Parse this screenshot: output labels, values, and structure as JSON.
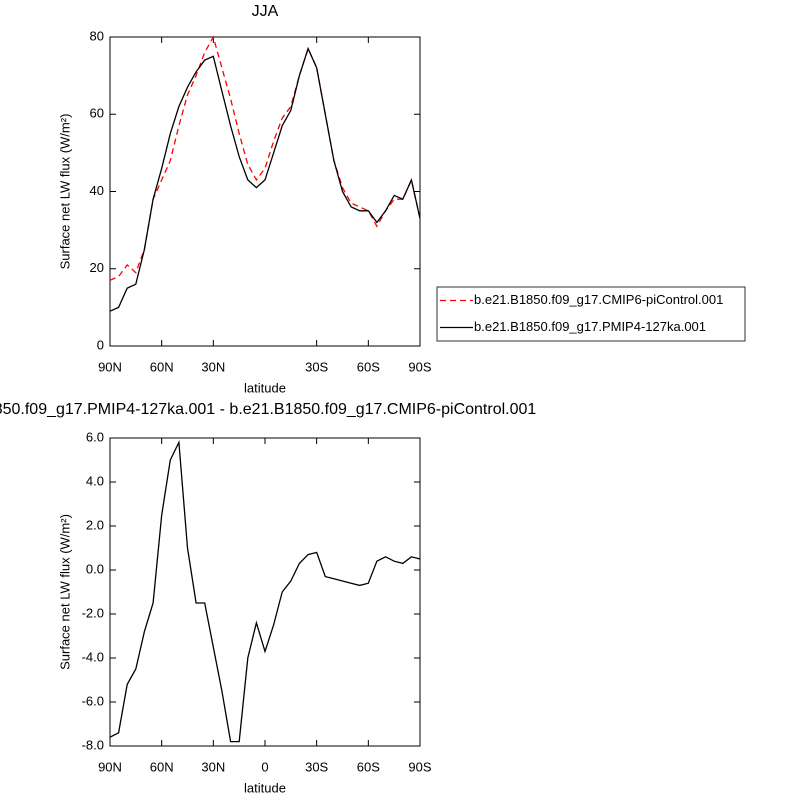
{
  "chart_data": [
    {
      "type": "line",
      "title": "JJA",
      "xlabel": "latitude",
      "ylabel": "Surface net LW flux (W/m²)",
      "x": [
        90,
        85,
        80,
        75,
        70,
        65,
        60,
        55,
        50,
        45,
        40,
        35,
        30,
        25,
        20,
        15,
        10,
        5,
        0,
        -5,
        -10,
        -15,
        -20,
        -25,
        -30,
        -35,
        -40,
        -45,
        -50,
        -55,
        -60,
        -65,
        -70,
        -75,
        -80,
        -85,
        -90
      ],
      "xlim": [
        90,
        -90
      ],
      "xticks": [
        {
          "value": 90,
          "label": "90N"
        },
        {
          "value": 60,
          "label": "60N"
        },
        {
          "value": 30,
          "label": "30N"
        },
        {
          "value": -30,
          "label": "30S"
        },
        {
          "value": -60,
          "label": "60S"
        },
        {
          "value": -90,
          "label": "90S"
        }
      ],
      "ylim": [
        0,
        80
      ],
      "yticks": [
        0,
        20,
        40,
        60,
        80
      ],
      "legend": "right",
      "series": [
        {
          "name": "b.e21.B1850.f09_g17.CMIP6-piControl.001",
          "color": "#ff0000",
          "style": "dashed",
          "values": [
            17,
            18,
            21,
            19,
            25,
            38,
            43,
            48,
            57,
            65,
            70,
            76,
            80,
            72,
            64,
            55,
            47,
            43,
            46,
            53,
            59,
            62,
            70,
            77,
            72,
            60,
            48,
            41,
            37,
            36,
            35,
            31,
            35,
            38,
            38,
            43,
            33
          ]
        },
        {
          "name": "b.e21.B1850.f09_g17.PMIP4-127ka.001",
          "color": "#000000",
          "style": "solid",
          "values": [
            9,
            10,
            15,
            16,
            25,
            38,
            46,
            55,
            62,
            67,
            71,
            74,
            75,
            66,
            57,
            49,
            43,
            41,
            43,
            50,
            57,
            61,
            70,
            77,
            72,
            60,
            48,
            40,
            36,
            35,
            35,
            32,
            35,
            39,
            38,
            43,
            33
          ]
        }
      ]
    },
    {
      "type": "line",
      "title": "850.f09_g17.PMIP4-127ka.001 - b.e21.B1850.f09_g17.CMIP6-piControl.001",
      "xlabel": "latitude",
      "ylabel": "Surface net LW flux (W/m²)",
      "x": [
        90,
        85,
        80,
        75,
        70,
        65,
        60,
        55,
        50,
        45,
        40,
        35,
        30,
        25,
        20,
        15,
        10,
        5,
        0,
        -5,
        -10,
        -15,
        -20,
        -25,
        -30,
        -35,
        -40,
        -45,
        -50,
        -55,
        -60,
        -65,
        -70,
        -75,
        -80,
        -85,
        -90
      ],
      "xlim": [
        90,
        -90
      ],
      "xticks": [
        {
          "value": 90,
          "label": "90N"
        },
        {
          "value": 60,
          "label": "60N"
        },
        {
          "value": 30,
          "label": "30N"
        },
        0,
        {
          "value": -30,
          "label": "30S"
        },
        {
          "value": -60,
          "label": "60S"
        },
        {
          "value": -90,
          "label": "90S"
        }
      ],
      "ylim": [
        -8,
        6
      ],
      "yticks": [
        {
          "value": -8,
          "label": "-8.0"
        },
        {
          "value": -6,
          "label": "-6.0"
        },
        {
          "value": -4,
          "label": "-4.0"
        },
        {
          "value": -2,
          "label": "-2.0"
        },
        {
          "value": 0,
          "label": "0.0"
        },
        {
          "value": 2,
          "label": "2.0"
        },
        {
          "value": 4,
          "label": "4.0"
        },
        {
          "value": 6,
          "label": "6.0"
        }
      ],
      "series": [
        {
          "color": "#000000",
          "style": "solid",
          "values": [
            -7.6,
            -7.4,
            -5.2,
            -4.5,
            -2.8,
            -1.5,
            2.5,
            5.0,
            5.8,
            1.0,
            -1.5,
            -1.5,
            -3.5,
            -5.5,
            -7.8,
            -7.8,
            -4.0,
            -2.4,
            -3.7,
            -2.5,
            -1.0,
            -0.5,
            0.3,
            0.7,
            0.8,
            -0.3,
            -0.4,
            -0.5,
            -0.6,
            -0.7,
            -0.6,
            0.4,
            0.6,
            0.4,
            0.3,
            0.6,
            0.5
          ]
        }
      ]
    }
  ]
}
